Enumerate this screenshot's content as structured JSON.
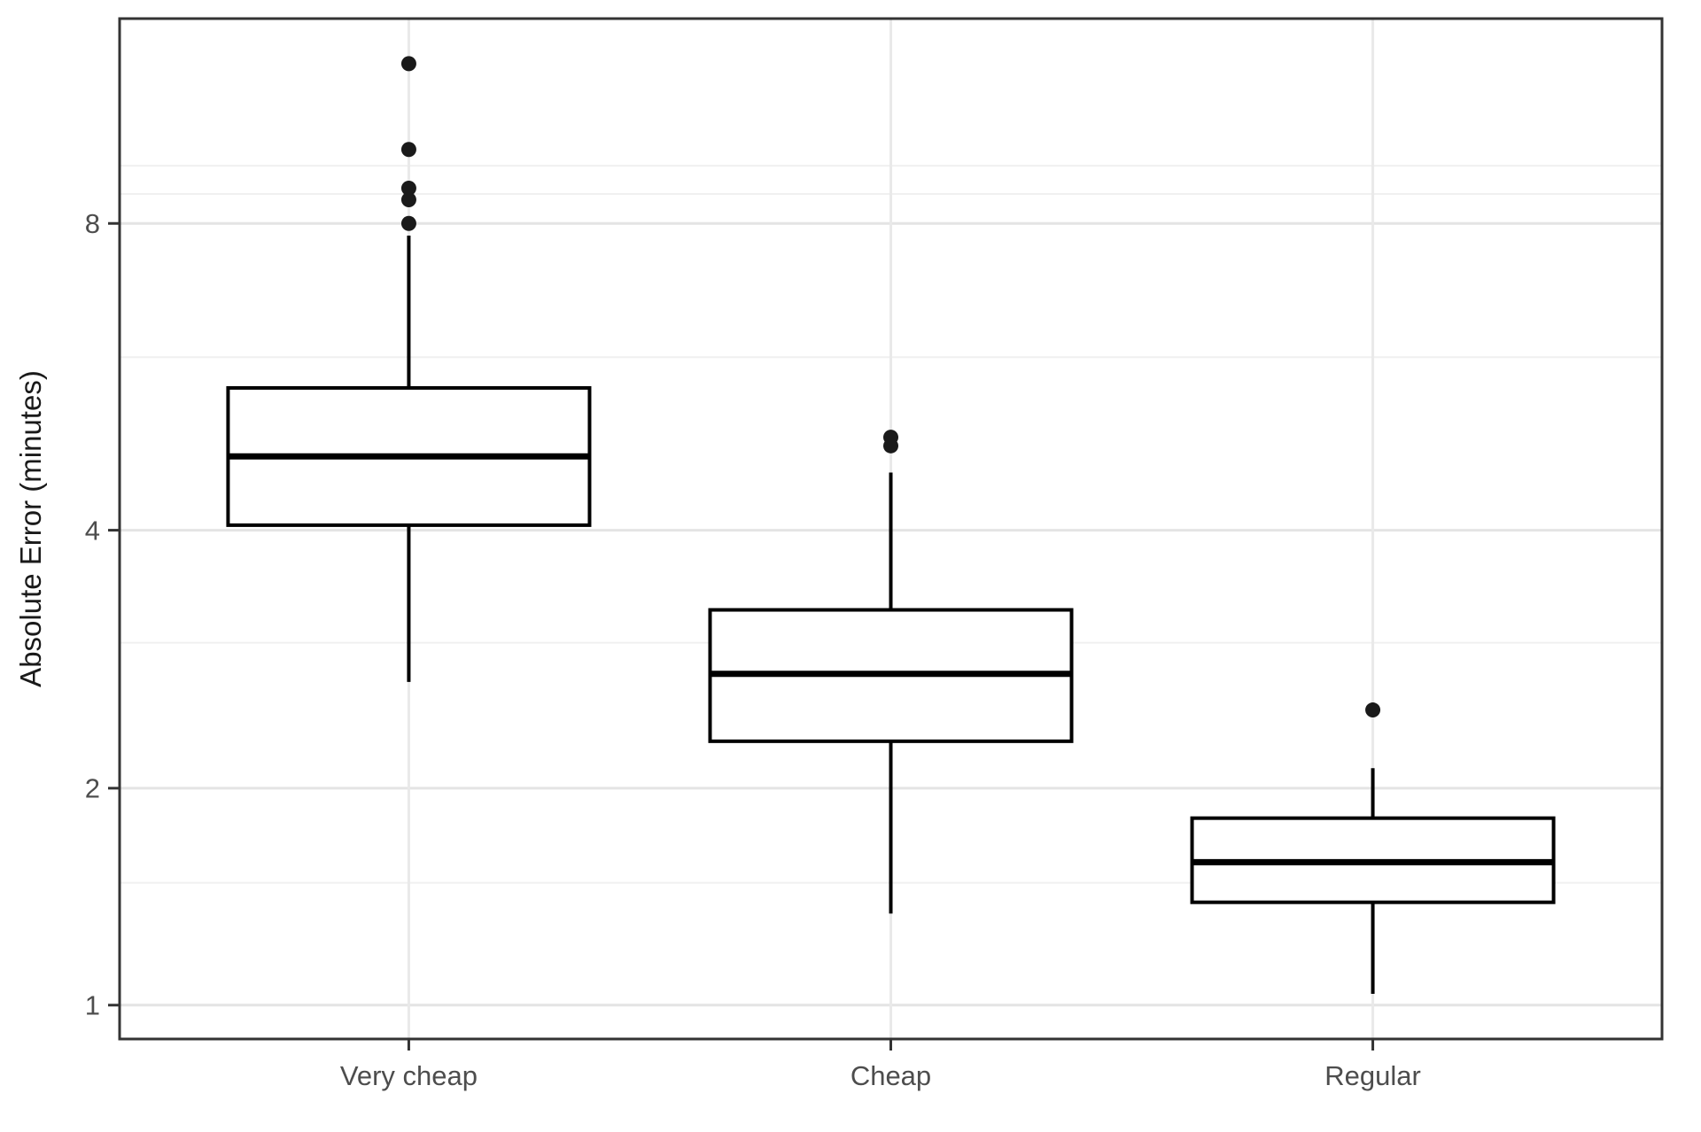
{
  "figure": {
    "background": "#ffffff"
  },
  "chart_data": {
    "type": "boxplot",
    "title": "",
    "xlabel": "",
    "ylabel": "Absolute Error (minutes)",
    "categories": [
      "Very cheap",
      "Cheap",
      "Regular"
    ],
    "series": [
      {
        "name": "Very cheap",
        "whisker_low": 2.7,
        "q1": 4.05,
        "median": 4.78,
        "q3": 5.6,
        "whisker_high": 7.8,
        "outliers": [
          8.0,
          8.4,
          8.6,
          9.3,
          11.0
        ]
      },
      {
        "name": "Cheap",
        "whisker_low": 1.36,
        "q1": 2.29,
        "median": 2.76,
        "q3": 3.27,
        "whisker_high": 4.6,
        "outliers": [
          4.9,
          5.0
        ]
      },
      {
        "name": "Regular",
        "whisker_low": 1.04,
        "q1": 1.41,
        "median": 1.6,
        "q3": 1.83,
        "whisker_high": 2.12,
        "outliers": [
          2.5
        ]
      }
    ],
    "y_axis": {
      "scale": "power",
      "exponent": 0.25,
      "ylim": [
        0.887,
        11.98
      ],
      "ticks": [
        1,
        2,
        4,
        8
      ],
      "tick_labels": [
        "1",
        "2",
        "4",
        "8"
      ],
      "minor_gridlines": [
        1.5,
        3,
        6,
        8.5,
        9
      ]
    },
    "legend": "none",
    "grid": true,
    "style": {
      "box_fill": "#ffffff",
      "box_stroke": "#000000",
      "median_stroke": "#000000",
      "whisker_stroke": "#000000",
      "outlier_color": "#1a1a1a",
      "major_grid_color": "#e4e4e4",
      "minor_grid_color": "#f0f0f0",
      "vertical_grid_color": "#e9e9e9",
      "panel_border_color": "#333333",
      "tick_mark_color": "#333333",
      "tick_label_color": "#4d4d4d",
      "axis_title_color": "#1a1a1a",
      "panel_background": "#ffffff"
    }
  }
}
